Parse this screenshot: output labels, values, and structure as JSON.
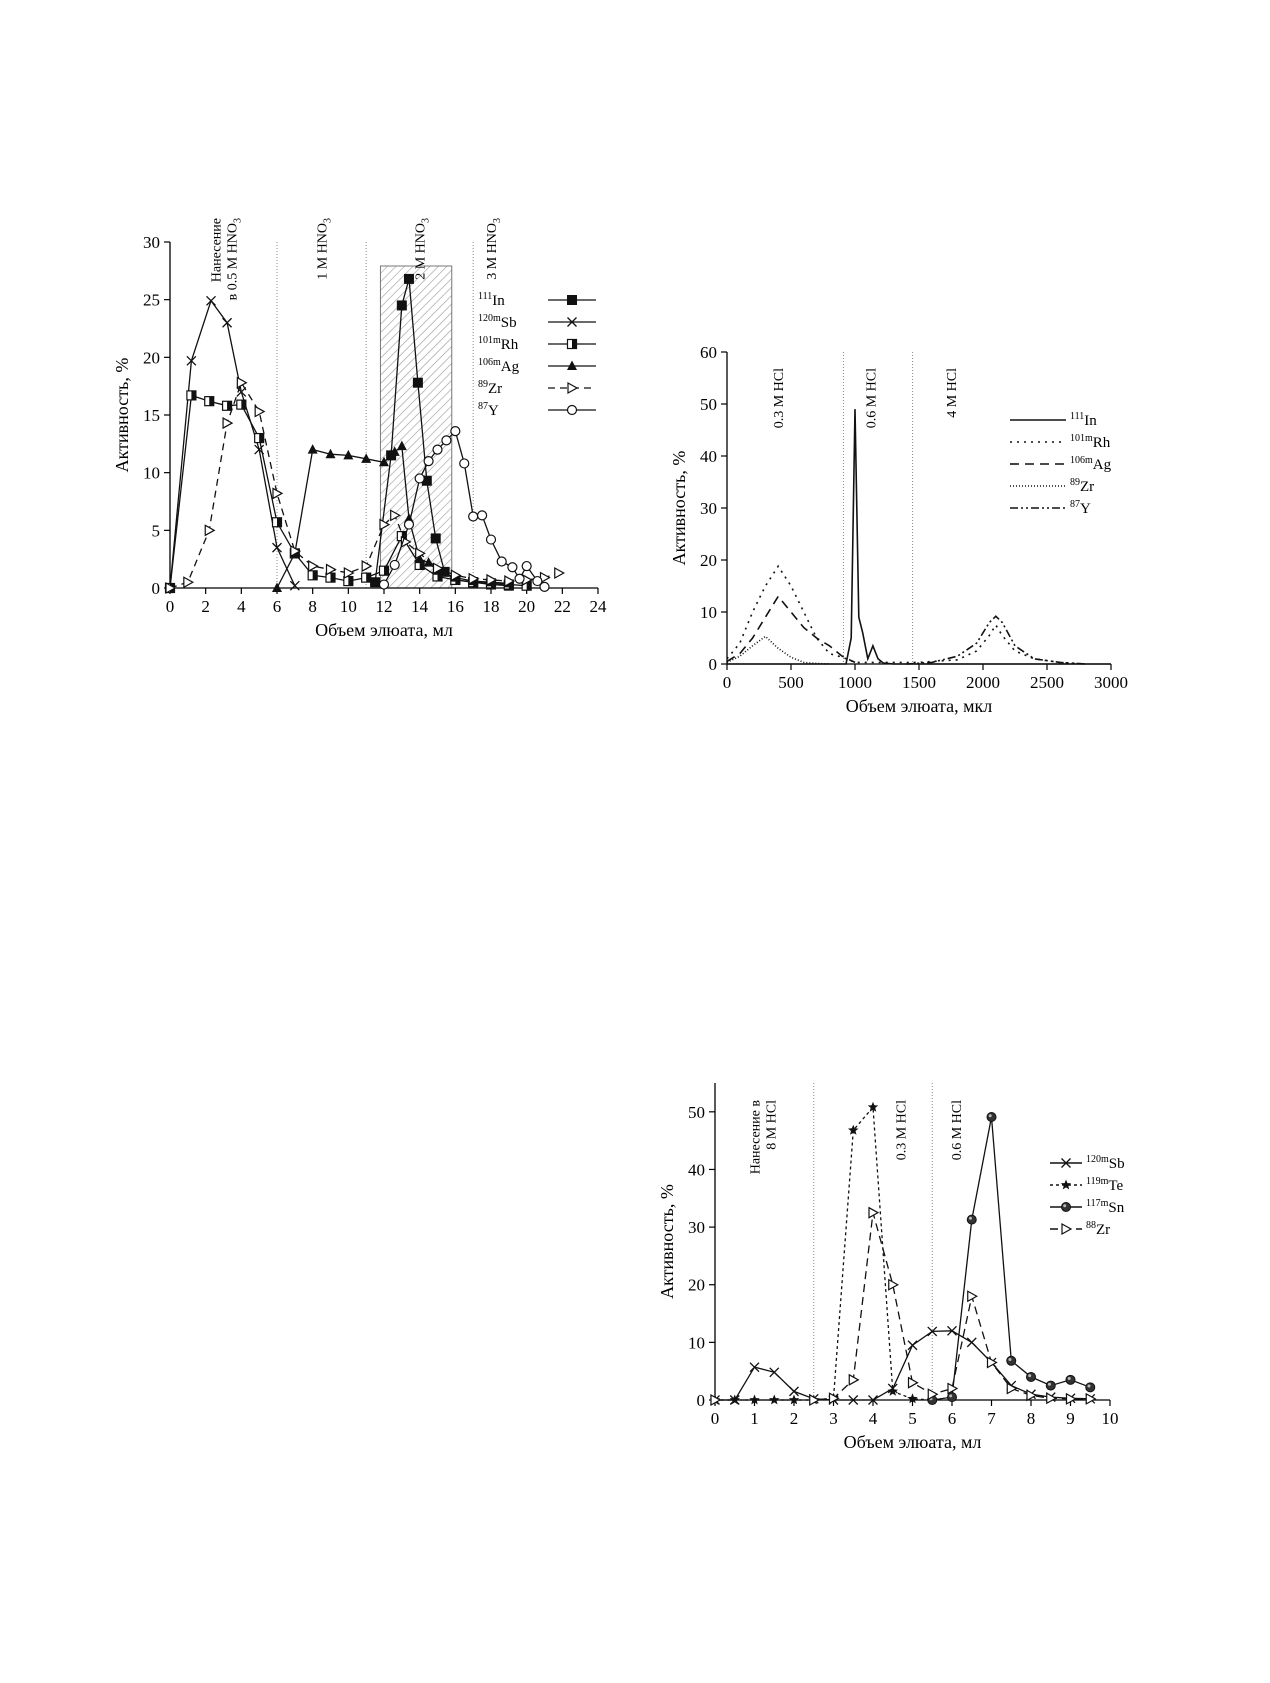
{
  "chart_data": [
    {
      "id": "chart-a",
      "type": "line",
      "xlabel": "Объем элюата, мл",
      "ylabel": "Активность, %",
      "xlim": [
        0,
        24
      ],
      "ylim": [
        0,
        30
      ],
      "xticks": [
        0,
        2,
        4,
        6,
        8,
        10,
        12,
        14,
        16,
        18,
        20,
        22,
        24
      ],
      "yticks": [
        0,
        5,
        10,
        15,
        20,
        25,
        30
      ],
      "regions": [
        {
          "label": "Нанесение",
          "label2": "в 0.5 M HNO",
          "sub": "3",
          "x": 3.0
        },
        {
          "label": "1 M HNO",
          "sub": "3",
          "x": 8.5
        },
        {
          "label": "2 M HNO",
          "sub": "3",
          "x": 14.0
        },
        {
          "label": "3 M HNO",
          "sub": "3",
          "x": 18.0
        }
      ],
      "dividers": [
        6,
        11,
        17
      ],
      "shaded": [
        11.8,
        15.8
      ],
      "series": [
        {
          "name": "In",
          "sup": "111",
          "marker": "square",
          "dash": "",
          "x": [
            11.5,
            12.4,
            13.0,
            13.4,
            13.9,
            14.4,
            14.9,
            15.4,
            16.0,
            17.0,
            18.0,
            19.0
          ],
          "y": [
            0.5,
            11.5,
            24.5,
            26.8,
            17.8,
            9.3,
            4.3,
            1.4,
            0.7,
            0.5,
            0.3,
            0.2
          ]
        },
        {
          "name": "Sb",
          "sup": "120m",
          "marker": "x",
          "dash": "",
          "x": [
            0,
            1.2,
            2.3,
            3.2,
            4.0,
            5.0,
            6.0,
            7.0
          ],
          "y": [
            0,
            19.7,
            24.9,
            23.0,
            17.0,
            12.0,
            3.5,
            0.2
          ]
        },
        {
          "name": "Rh",
          "sup": "101m",
          "marker": "halfsquare",
          "dash": "",
          "x": [
            0,
            1.2,
            2.2,
            3.2,
            4.0,
            5.0,
            6.0,
            7.0,
            8.0,
            9.0,
            10.0,
            11.0,
            12.0,
            13.0,
            14.0,
            15.0,
            16.0,
            17.0,
            18.0,
            19.0,
            20.0
          ],
          "y": [
            0,
            16.7,
            16.2,
            15.8,
            15.9,
            13.0,
            5.7,
            3.0,
            1.1,
            0.9,
            0.6,
            0.9,
            1.5,
            4.5,
            2.0,
            1.0,
            0.7,
            0.5,
            0.4,
            0.3,
            0.2
          ]
        },
        {
          "name": "Ag",
          "sup": "106m",
          "marker": "triangle",
          "dash": "",
          "x": [
            6.0,
            7.0,
            8.0,
            9.0,
            10.0,
            11.0,
            12.0,
            12.6,
            13.0,
            13.4,
            14.0,
            14.5,
            15.0,
            16.0,
            17.0,
            18.0,
            19.0
          ],
          "y": [
            0,
            3.0,
            12.0,
            11.6,
            11.5,
            11.2,
            10.9,
            11.8,
            12.3,
            6.0,
            2.5,
            2.2,
            1.5,
            0.9,
            0.6,
            0.5,
            0.4
          ]
        },
        {
          "name": "Zr",
          "sup": "89",
          "marker": "triright",
          "dash": "7,5",
          "x": [
            0,
            1.0,
            2.2,
            3.2,
            4.0,
            5.0,
            6.0,
            7.0,
            8.0,
            9.0,
            10.0,
            11.0,
            12.0,
            12.6,
            13.2,
            14.0,
            15.0,
            16.0,
            17.0,
            18.0,
            19.0,
            20.0,
            21.0,
            21.8
          ],
          "y": [
            0,
            0.5,
            5.0,
            14.3,
            17.8,
            15.3,
            8.2,
            3.2,
            1.9,
            1.6,
            1.3,
            1.9,
            5.5,
            6.3,
            4.0,
            3.0,
            1.7,
            1.1,
            0.8,
            0.7,
            0.6,
            0.7,
            0.9,
            1.3
          ]
        },
        {
          "name": "Y",
          "sup": "87",
          "marker": "circle",
          "dash": "",
          "x": [
            12.0,
            12.6,
            13.4,
            14.0,
            14.5,
            15.0,
            15.5,
            16.0,
            16.5,
            17.0,
            17.5,
            18.0,
            18.6,
            19.2,
            19.6,
            20.0,
            20.6,
            21.0
          ],
          "y": [
            0.3,
            2.0,
            5.5,
            9.5,
            11.0,
            12.0,
            12.8,
            13.6,
            10.8,
            6.2,
            6.3,
            4.2,
            2.3,
            1.8,
            0.8,
            1.9,
            0.6,
            0.1
          ]
        }
      ]
    },
    {
      "id": "chart-b",
      "type": "line",
      "xlabel": "Объем элюата, мкл",
      "ylabel": "Активность, %",
      "xlim": [
        0,
        3000
      ],
      "ylim": [
        0,
        60
      ],
      "xticks": [
        0,
        500,
        1000,
        1500,
        2000,
        2500,
        3000
      ],
      "yticks": [
        0,
        10,
        20,
        30,
        40,
        50,
        60
      ],
      "regions": [
        {
          "label": "0.3 M HCl",
          "x": 400
        },
        {
          "label": "0.6 M HCl",
          "x": 1120
        },
        {
          "label": "4 M HCl",
          "x": 1750
        }
      ],
      "dividers": [
        910,
        1450
      ],
      "series": [
        {
          "name": "In",
          "sup": "111",
          "dash": "",
          "x": [
            0,
            930,
            970,
            1000,
            1030,
            1060,
            1100,
            1140,
            1180,
            1220,
            1300,
            3000
          ],
          "y": [
            0,
            0,
            5,
            49,
            9,
            6,
            1,
            3.5,
            1.0,
            0.2,
            0,
            0
          ]
        },
        {
          "name": "Rh",
          "sup": "101m",
          "dash": "2,5",
          "x": [
            0,
            100,
            200,
            300,
            400,
            500,
            600,
            700,
            800,
            900,
            1000,
            1500,
            1800,
            1950,
            2050,
            2100,
            2150,
            2250,
            2400,
            2600,
            2800
          ],
          "y": [
            1,
            4,
            10,
            15,
            18.8,
            15,
            10,
            5,
            2,
            1.3,
            0.3,
            0.3,
            0.8,
            2.5,
            5.5,
            7.5,
            5.5,
            2.5,
            1,
            0.3,
            0
          ]
        },
        {
          "name": "Ag",
          "sup": "106m",
          "dash": "9,6",
          "x": [
            0,
            100,
            200,
            300,
            400,
            500,
            600,
            700,
            800,
            900,
            1000
          ],
          "y": [
            0.5,
            2,
            5,
            9,
            13,
            10,
            7,
            5,
            3.5,
            1.5,
            0.3
          ]
        },
        {
          "name": "Zr",
          "sup": "89",
          "dash": "1,2",
          "x": [
            0,
            100,
            200,
            300,
            400,
            500,
            600,
            700,
            800
          ],
          "y": [
            0.3,
            1.5,
            3.5,
            5.3,
            3.0,
            1.3,
            0.3,
            0.1,
            0
          ]
        },
        {
          "name": "Y",
          "sup": "87",
          "dash": "8,3,2,3,2,3",
          "x": [
            1400,
            1600,
            1800,
            1950,
            2050,
            2100,
            2150,
            2250,
            2400,
            2600,
            2800
          ],
          "y": [
            0,
            0.3,
            1.5,
            4,
            8,
            9.2,
            8,
            3.5,
            1,
            0.3,
            0
          ]
        }
      ]
    },
    {
      "id": "chart-c",
      "type": "line",
      "xlabel": "Объем элюата, мл",
      "ylabel": "Активность, %",
      "xlim": [
        0,
        10
      ],
      "ylim": [
        0,
        55
      ],
      "xticks": [
        0,
        1,
        2,
        3,
        4,
        5,
        6,
        7,
        8,
        9,
        10
      ],
      "yticks": [
        0,
        10,
        20,
        30,
        40,
        50
      ],
      "regions": [
        {
          "label": "Нанесение в",
          "label2": "8 M HCl",
          "x": 1.2
        },
        {
          "label": "0.3 M HCl",
          "x": 4.7
        },
        {
          "label": "0.6 M HCl",
          "x": 6.1
        }
      ],
      "dividers": [
        2.5,
        5.5
      ],
      "series": [
        {
          "name": "Sb",
          "sup": "120m",
          "marker": "x",
          "dash": "",
          "x": [
            0,
            0.5,
            1.0,
            1.5,
            2.0,
            2.5,
            3.0,
            3.5,
            4.0,
            4.5,
            5.0,
            5.5,
            6.0,
            6.5,
            7.0,
            7.5,
            8.0,
            8.5,
            9.0,
            9.5
          ],
          "y": [
            0,
            0,
            5.7,
            4.8,
            1.5,
            0.2,
            0,
            0,
            0,
            2.0,
            9.5,
            11.9,
            12.0,
            10.0,
            6.5,
            2.5,
            1.0,
            0.5,
            0.3,
            0.2
          ]
        },
        {
          "name": "Te",
          "sup": "119m",
          "marker": "star",
          "dash": "3,3",
          "x": [
            0,
            0.5,
            1.0,
            1.5,
            2.0,
            2.5,
            3.0,
            3.5,
            4.0,
            4.5,
            5.0,
            5.5
          ],
          "y": [
            0,
            0,
            0,
            0,
            0,
            0,
            0.3,
            46.8,
            50.8,
            1.5,
            0.2,
            0
          ]
        },
        {
          "name": "Sn",
          "sup": "117m",
          "marker": "ballcircle",
          "dash": "",
          "x": [
            5.5,
            6.0,
            6.5,
            7.0,
            7.5,
            8.0,
            8.5,
            9.0,
            9.5
          ],
          "y": [
            0,
            0.5,
            31.3,
            49.1,
            6.8,
            4.0,
            2.5,
            3.5,
            2.2
          ]
        },
        {
          "name": "Zr",
          "sup": "88",
          "marker": "triright",
          "dash": "8,5",
          "x": [
            0,
            2.5,
            3.0,
            3.5,
            4.0,
            4.5,
            5.0,
            5.5,
            6.0,
            6.5,
            7.0,
            7.5,
            8.0,
            8.5,
            9.0,
            9.5
          ],
          "y": [
            0,
            0,
            0.3,
            3.5,
            32.5,
            20.0,
            3.0,
            1.0,
            2.0,
            18.0,
            6.5,
            2.0,
            0.8,
            0.3,
            0.2,
            0.2
          ]
        }
      ]
    }
  ]
}
